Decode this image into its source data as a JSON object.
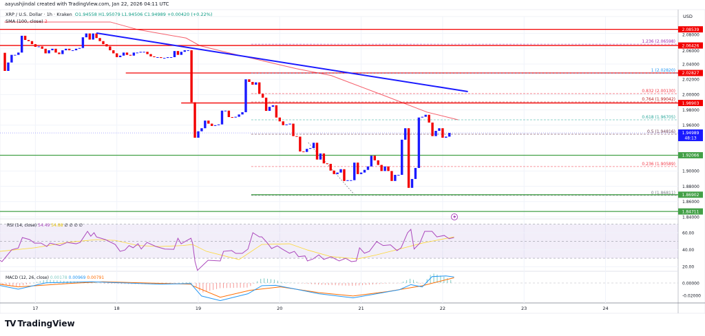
{
  "header": {
    "credit": "aayushjindal created with TradingView.com, Jan 22, 2026 04:11 UTC"
  },
  "legend": {
    "symbol": "XRP / U.S. Dollar · 1h · Kraken",
    "open": "O1.94558",
    "high": "H1.95079",
    "low": "L1.94506",
    "close": "C1.94989",
    "change": "+0.00420 (+0.22%)",
    "sma_label": "SMA (100, close)",
    "sma_value": "2"
  },
  "price_axis": {
    "currency": "USD",
    "ticks": [
      "2.08000",
      "2.06000",
      "2.04000",
      "2.02000",
      "2.00000",
      "1.98000",
      "1.96000",
      "1.90000",
      "1.88000",
      "1.86000",
      "1.84000"
    ],
    "current_price": "1.94989",
    "countdown": "48:13"
  },
  "levels": [
    {
      "price": 2.08539,
      "label": "2.08539",
      "color": "#f20000",
      "from_day": 16.5
    },
    {
      "price": 2.06426,
      "label": "2.06426",
      "color": "#f20000",
      "from_day": 16.5
    },
    {
      "price": 2.02827,
      "label": "2.02827",
      "color": "#f20000",
      "from_day": 18.11
    },
    {
      "price": 1.98903,
      "label": "1.98903",
      "color": "#f20000",
      "from_day": 18.79
    },
    {
      "price": 1.92066,
      "label": "1.92066",
      "color": "#43a047",
      "from_day": 16.5
    },
    {
      "price": 1.86902,
      "label": "1.86902",
      "color": "#43a047",
      "from_day": 19.65
    },
    {
      "price": 1.84711,
      "label": "1.84711",
      "color": "#43a047",
      "from_day": 16.5
    }
  ],
  "fib": {
    "from_day": 19.65,
    "levels": [
      {
        "price": 2.06598,
        "label": "1.236 (2.06598)",
        "color": "#9c27b0"
      },
      {
        "price": 2.0282,
        "label": "1 (2.02820)",
        "color": "#2196f3"
      },
      {
        "price": 2.0013,
        "label": "0.832 (2.00130)",
        "color": "#f23645"
      },
      {
        "price": 1.99042,
        "label": "0.764 (1.99042)",
        "color": "#b71c1c"
      },
      {
        "price": 1.96705,
        "label": "0.618 (1.96705)",
        "color": "#26a69a"
      },
      {
        "price": 1.94816,
        "label": "0.5 (1.94816)",
        "color": "#6d3b52"
      },
      {
        "price": 1.90589,
        "label": "0.236 (1.90589)",
        "color": "#f23645"
      },
      {
        "price": 1.86811,
        "label": "0 (1.86811)",
        "color": "#787b86"
      }
    ],
    "diagonal": [
      [
        20.35,
        1.9373
      ],
      [
        20.92,
        1.8688
      ]
    ]
  },
  "trendline": {
    "color": "#1a1aff",
    "points": [
      [
        17.75,
        2.0805
      ],
      [
        22.31,
        2.004
      ]
    ]
  },
  "rsi": {
    "label": "RSI (14, close)",
    "value": "54.49",
    "signal_value": "54.88",
    "extra": "∅ ∅ ∅ ∅",
    "axis_ticks": [
      "60.00",
      "40.00",
      "20.00"
    ],
    "line": [
      [
        16.565,
        27.6
      ],
      [
        16.59,
        26
      ],
      [
        16.71,
        40
      ],
      [
        16.79,
        42
      ],
      [
        16.84,
        54.3
      ],
      [
        16.93,
        51.9
      ],
      [
        16.99,
        47.8
      ],
      [
        17.07,
        47.8
      ],
      [
        17.14,
        43.8
      ],
      [
        17.18,
        47.8
      ],
      [
        17.3,
        44.9
      ],
      [
        17.39,
        48.6
      ],
      [
        17.5,
        47
      ],
      [
        17.55,
        48.6
      ],
      [
        17.64,
        61.6
      ],
      [
        17.68,
        55.9
      ],
      [
        17.72,
        60
      ],
      [
        17.75,
        55.1
      ],
      [
        17.86,
        51.9
      ],
      [
        17.98,
        46.2
      ],
      [
        18.04,
        38.1
      ],
      [
        18.1,
        39.7
      ],
      [
        18.15,
        44.9
      ],
      [
        18.2,
        42.3
      ],
      [
        18.26,
        47
      ],
      [
        18.3,
        40.8
      ],
      [
        18.37,
        48.6
      ],
      [
        18.48,
        43.8
      ],
      [
        18.59,
        40.8
      ],
      [
        18.7,
        40.5
      ],
      [
        18.75,
        53.5
      ],
      [
        18.79,
        47
      ],
      [
        18.85,
        50.3
      ],
      [
        18.91,
        53.5
      ],
      [
        18.93,
        47.8
      ],
      [
        18.96,
        26
      ],
      [
        18.99,
        15.7
      ],
      [
        19.12,
        27.6
      ],
      [
        19.27,
        26.8
      ],
      [
        19.31,
        38.1
      ],
      [
        19.41,
        39
      ],
      [
        19.46,
        35.7
      ],
      [
        19.54,
        35.7
      ],
      [
        19.61,
        40.8
      ],
      [
        19.67,
        60
      ],
      [
        19.75,
        55.1
      ],
      [
        19.78,
        55.1
      ],
      [
        19.84,
        48.9
      ],
      [
        19.9,
        41.4
      ],
      [
        19.97,
        44.6
      ],
      [
        20.03,
        40.8
      ],
      [
        20.12,
        35.9
      ],
      [
        20.18,
        38.1
      ],
      [
        20.23,
        31.9
      ],
      [
        20.31,
        32.7
      ],
      [
        20.34,
        26.8
      ],
      [
        20.41,
        29.2
      ],
      [
        20.48,
        34
      ],
      [
        20.54,
        28.6
      ],
      [
        20.63,
        31.6
      ],
      [
        20.73,
        26.8
      ],
      [
        20.81,
        29.9
      ],
      [
        20.88,
        26
      ],
      [
        20.94,
        26.8
      ],
      [
        20.98,
        42.3
      ],
      [
        21.04,
        35.9
      ],
      [
        21.1,
        38.1
      ],
      [
        21.19,
        49.5
      ],
      [
        21.27,
        44.9
      ],
      [
        21.36,
        45.7
      ],
      [
        21.44,
        39
      ],
      [
        21.49,
        42.3
      ],
      [
        21.57,
        60
      ],
      [
        21.61,
        64
      ],
      [
        21.65,
        40.8
      ],
      [
        21.72,
        47.8
      ],
      [
        21.78,
        61.6
      ],
      [
        21.87,
        61.6
      ],
      [
        21.93,
        55.1
      ],
      [
        22.02,
        56.8
      ],
      [
        22.08,
        52.9
      ],
      [
        22.14,
        54.3
      ]
    ],
    "signal": [
      [
        16.565,
        38.1
      ],
      [
        16.99,
        42.3
      ],
      [
        17.39,
        48.6
      ],
      [
        17.75,
        51.9
      ],
      [
        17.98,
        51
      ],
      [
        18.26,
        44.9
      ],
      [
        18.53,
        43.8
      ],
      [
        18.81,
        44.9
      ],
      [
        18.93,
        46.2
      ],
      [
        19.1,
        38.1
      ],
      [
        19.5,
        28.4
      ],
      [
        19.78,
        46.2
      ],
      [
        20.12,
        47
      ],
      [
        20.34,
        39.7
      ],
      [
        20.63,
        31.9
      ],
      [
        20.96,
        29.2
      ],
      [
        21.19,
        34
      ],
      [
        21.47,
        40.8
      ],
      [
        21.75,
        47.8
      ],
      [
        22.14,
        55.1
      ]
    ],
    "colors": {
      "line": "#ab47bc",
      "signal": "#fdd835",
      "band": "#7e57c2"
    }
  },
  "macd": {
    "label": "MACD (12, 26, close)",
    "histogram_value": "0.00178",
    "macd_value": "0.00969",
    "signal_value": "0.00791",
    "axis_ticks": [
      "0.00000",
      "-0.02000"
    ],
    "macd_line": [
      [
        16.565,
        -0.004
      ],
      [
        16.79,
        -0.01
      ],
      [
        17.13,
        0.0003
      ],
      [
        17.69,
        0.002
      ],
      [
        18.53,
        -0.002
      ],
      [
        18.91,
        -0.0008
      ],
      [
        18.93,
        -0.0044
      ],
      [
        19.04,
        -0.021
      ],
      [
        19.27,
        -0.0285
      ],
      [
        19.5,
        -0.021
      ],
      [
        19.61,
        -0.0174
      ],
      [
        19.78,
        -0.0044
      ],
      [
        19.95,
        -0.0037
      ],
      [
        20.2,
        -0.01
      ],
      [
        20.48,
        -0.0174
      ],
      [
        20.9,
        -0.024
      ],
      [
        21.19,
        -0.0174
      ],
      [
        21.47,
        -0.0108
      ],
      [
        21.61,
        -0.0026
      ],
      [
        21.75,
        -0.0063
      ],
      [
        21.87,
        0.0103
      ],
      [
        22.04,
        0.0114
      ],
      [
        22.14,
        0.0097
      ]
    ],
    "signal_line": [
      [
        16.565,
        -0.002
      ],
      [
        16.79,
        -0.0063
      ],
      [
        17.41,
        -0.0008
      ],
      [
        17.83,
        0.002
      ],
      [
        18.91,
        -0.0019
      ],
      [
        18.93,
        -0.0044
      ],
      [
        19.27,
        -0.023
      ],
      [
        19.63,
        -0.0119
      ],
      [
        20.01,
        -0.0063
      ],
      [
        20.48,
        -0.0156
      ],
      [
        20.9,
        -0.021
      ],
      [
        21.33,
        -0.0137
      ],
      [
        21.75,
        -0.0044
      ],
      [
        22.14,
        0.0085
      ]
    ],
    "colors": {
      "macd": "#2196f3",
      "signal": "#ff6d00",
      "hist_up": "#26a69a",
      "hist_down": "#ef5350",
      "value_hist": "#80cbc4",
      "value_macd": "#2196f3",
      "value_signal": "#ff6d00"
    }
  },
  "sma": {
    "color": "#f23645",
    "points": [
      [
        16.62,
        2.095
      ],
      [
        17.92,
        2.095
      ],
      [
        18.26,
        2.085
      ],
      [
        18.85,
        2.074
      ],
      [
        19.02,
        2.064
      ],
      [
        19.36,
        2.055
      ],
      [
        20.2,
        2.034
      ],
      [
        20.63,
        2.025
      ],
      [
        21.3,
        1.998
      ],
      [
        21.81,
        1.977
      ],
      [
        22.19,
        1.967
      ]
    ]
  },
  "x_axis": {
    "ticks": [
      "17",
      "18",
      "19",
      "20",
      "21",
      "22",
      "23",
      "24"
    ]
  },
  "brand": {
    "logo": "TV",
    "name": "TradingView"
  },
  "colors": {
    "up": "#1a1aff",
    "down": "#f20000",
    "current_tag": "#1a1aff",
    "grid": "#f0f3fa"
  },
  "chart_data": {
    "type": "candlestick",
    "title": "XRP / U.S. Dollar · 1h · Kraken",
    "interval_hours": 1,
    "first_candle_day": 16.625,
    "first_open": 2.0547,
    "closes": [
      2.031,
      2.042,
      2.052,
      2.052,
      2.055,
      2.077,
      2.0715,
      2.07,
      2.066,
      2.0625,
      2.063,
      2.06,
      2.054,
      2.058,
      2.06,
      2.055,
      2.053,
      2.058,
      2.06,
      2.058,
      2.058,
      2.06,
      2.061,
      2.075,
      2.08,
      2.072,
      2.08,
      2.074,
      2.07,
      2.066,
      2.063,
      2.058,
      2.054,
      2.049,
      2.051,
      2.055,
      2.052,
      2.051,
      2.055,
      2.055,
      2.056,
      2.056,
      2.053,
      2.05,
      2.049,
      2.049,
      2.048,
      2.048,
      2.049,
      2.049,
      2.057,
      2.052,
      2.056,
      2.058,
      2.058,
      1.99,
      1.9436,
      1.952,
      1.956,
      1.966,
      1.962,
      1.959,
      1.96,
      1.961,
      1.979,
      1.979,
      1.9706,
      1.97,
      1.971,
      1.974,
      1.977,
      2.02,
      2.0166,
      2.013,
      2.016,
      2.001,
      1.996,
      1.9787,
      1.984,
      1.986,
      1.97,
      1.965,
      1.96,
      1.961,
      1.962,
      1.9457,
      1.945,
      1.9256,
      1.925,
      1.929,
      1.93,
      1.937,
      1.915,
      1.923,
      1.91,
      1.9094,
      1.9006,
      1.896,
      1.898,
      1.9024,
      1.887,
      1.888,
      1.888,
      1.911,
      1.896,
      1.898,
      1.9015,
      1.906,
      1.92,
      1.914,
      1.908,
      1.9,
      1.906,
      1.9,
      1.887,
      1.895,
      1.895,
      1.941,
      1.956,
      1.878,
      1.8896,
      1.904,
      1.97,
      1.971,
      1.9736,
      1.9634,
      1.9457,
      1.9526,
      1.956,
      1.9436,
      1.945,
      1.9499
    ],
    "ylim": [
      1.83,
      2.1
    ],
    "xlim": [
      16.565,
      24.9
    ],
    "grid": true
  }
}
